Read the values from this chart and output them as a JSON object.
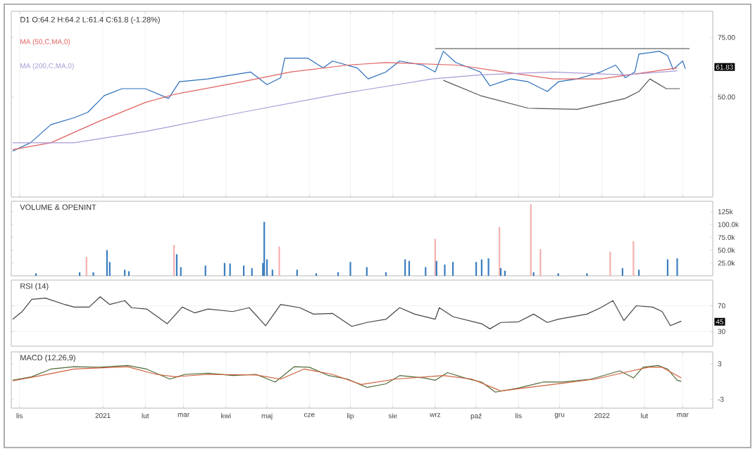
{
  "chart_data": [
    {
      "type": "line",
      "title": "D1 O:64.2 H:64.2 L:61.4 C:61.8 (-1.28%)",
      "xlim": [
        "2020-10-26",
        "2022-03-23"
      ],
      "ylim": [
        8,
        86
      ],
      "yticks": [
        {
          "value": 50,
          "label": "50.00"
        },
        {
          "value": 75,
          "label": "75.00"
        }
      ],
      "xticks": [
        {
          "value": "2020-11-01",
          "label": null
        },
        {
          "value": "2021-01-01",
          "label": null
        },
        {
          "value": "2021-02-01",
          "label": null
        },
        {
          "value": "2021-03-01",
          "label": null
        },
        {
          "value": "2021-04-01",
          "label": null
        },
        {
          "value": "2021-05-01",
          "label": null
        },
        {
          "value": "2021-06-01",
          "label": null
        },
        {
          "value": "2021-07-01",
          "label": null
        },
        {
          "value": "2021-08-01",
          "label": null
        },
        {
          "value": "2021-09-01",
          "label": null
        },
        {
          "value": "2021-10-01",
          "label": null
        },
        {
          "value": "2021-11-01",
          "label": null
        },
        {
          "value": "2021-12-01",
          "label": null
        },
        {
          "value": "2022-01-01",
          "label": null
        },
        {
          "value": "2022-02-01",
          "label": null
        },
        {
          "value": "2022-03-01",
          "label": null
        }
      ],
      "tick_labels": "y",
      "grid": "x",
      "legend": "top left",
      "annotations": [
        "61.83"
      ],
      "series": [
        {
          "color": "#2a6ebb",
          "x": [
            "2020-10-27",
            "2020-11-09",
            "2020-11-24",
            "2020-12-11",
            "2020-12-21",
            "2021-01-02",
            "2021-01-15",
            "2021-02-01",
            "2021-02-18",
            "2021-02-26",
            "2021-03-19",
            "2021-04-06",
            "2021-04-19",
            "2021-05-01",
            "2021-05-11",
            "2021-05-14",
            "2021-05-31",
            "2021-06-11",
            "2021-06-18",
            "2021-07-06",
            "2021-07-14",
            "2021-07-27",
            "2021-08-06",
            "2021-08-23",
            "2021-09-01",
            "2021-09-07",
            "2021-09-16",
            "2021-10-04",
            "2021-10-11",
            "2021-10-26",
            "2021-11-08",
            "2021-11-22",
            "2021-11-30",
            "2021-12-14",
            "2021-12-31",
            "2022-01-11",
            "2022-01-18",
            "2022-01-25",
            "2022-01-28",
            "2022-02-12",
            "2022-02-18",
            "2022-02-22",
            "2022-03-01",
            "2022-03-03"
          ],
          "values": [
            27.3,
            30.8,
            38.4,
            41.3,
            43.6,
            50.6,
            53.5,
            53.5,
            49.4,
            56.4,
            57.6,
            59.3,
            60.5,
            55.2,
            58.1,
            66.3,
            66.3,
            62.2,
            65.1,
            62.2,
            57.6,
            60.5,
            65.1,
            63.4,
            60.5,
            69.2,
            64.5,
            60.5,
            54.7,
            57.6,
            56.4,
            52.3,
            56.4,
            57.6,
            60.5,
            63.4,
            58.1,
            60.5,
            68.0,
            69.2,
            67.4,
            61.6,
            65.1,
            61.8
          ]
        },
        {
          "name": "MA (50,C,MA,0)",
          "color": "#e06060",
          "x": [
            "2020-10-27",
            "2020-11-24",
            "2020-12-28",
            "2021-02-01",
            "2021-02-23",
            "2021-04-13",
            "2021-05-18",
            "2021-06-29",
            "2021-07-27",
            "2021-09-17",
            "2021-10-22",
            "2021-11-26",
            "2021-12-31",
            "2022-02-04",
            "2022-02-25"
          ],
          "values": [
            27.9,
            30.8,
            39.5,
            47.7,
            51.2,
            56.4,
            60.5,
            63.4,
            64.5,
            63.4,
            60.5,
            57.6,
            57.6,
            60.5,
            62.2
          ]
        },
        {
          "name": "MA (200,C,MA,0)",
          "color": "#a99bd6",
          "x": [
            "2020-10-27",
            "2020-12-11",
            "2021-02-01",
            "2021-04-13",
            "2021-06-22",
            "2021-08-30",
            "2021-10-04",
            "2021-11-26",
            "2022-01-18",
            "2022-02-25"
          ],
          "values": [
            30.8,
            30.8,
            35.5,
            43.6,
            51.2,
            57.6,
            59.3,
            60.5,
            59.3,
            61.0
          ]
        },
        {
          "color": "#555555",
          "x": [
            "2021-09-07",
            "2021-10-04",
            "2021-11-08",
            "2021-12-14",
            "2022-01-18",
            "2022-01-28",
            "2022-02-05",
            "2022-02-17",
            "2022-02-27"
          ],
          "values": [
            57.0,
            50.6,
            45.3,
            44.8,
            49.4,
            52.3,
            57.6,
            53.5,
            53.5
          ]
        },
        {
          "color": "#666666",
          "x": [
            "2021-09-01",
            "2022-03-06"
          ],
          "values": [
            70.3,
            70.3
          ]
        }
      ]
    },
    {
      "type": "bar",
      "title": "VOLUME & OPENINT",
      "xlim": [
        "2020-10-26",
        "2022-03-23"
      ],
      "ylim": [
        0,
        145000
      ],
      "yticks": [
        {
          "value": 25000,
          "label": "25.0k"
        },
        {
          "value": 50000,
          "label": "50.0k"
        },
        {
          "value": 75000,
          "label": "75.0k"
        },
        {
          "value": 100000,
          "label": "100.0k"
        },
        {
          "value": 125000,
          "label": "125k"
        }
      ],
      "tick_labels": "y",
      "grid": false,
      "series": [
        {
          "x": [
            "2020-11-13",
            "2020-12-15",
            "2020-12-20",
            "2020-12-25",
            "2021-01-04",
            "2021-01-06",
            "2021-01-17",
            "2021-01-20",
            "2021-02-22",
            "2021-02-24",
            "2021-02-27",
            "2021-03-17",
            "2021-03-31",
            "2021-04-04",
            "2021-04-14",
            "2021-04-20",
            "2021-04-28",
            "2021-04-29",
            "2021-05-01",
            "2021-05-05",
            "2021-05-10",
            "2021-05-23",
            "2021-06-06",
            "2021-06-22",
            "2021-07-01",
            "2021-07-13",
            "2021-07-27",
            "2021-08-10",
            "2021-08-13",
            "2021-08-25",
            "2021-09-01",
            "2021-09-02",
            "2021-09-08",
            "2021-09-14",
            "2021-10-01",
            "2021-10-05",
            "2021-10-10",
            "2021-10-18",
            "2021-10-19",
            "2021-10-22",
            "2021-11-10",
            "2021-11-12",
            "2021-11-17",
            "2021-11-30",
            "2021-12-21",
            "2022-01-07",
            "2022-01-16",
            "2022-01-24",
            "2022-01-28",
            "2022-02-18",
            "2022-02-25"
          ],
          "values": [
            5000,
            7000,
            37000,
            7000,
            50000,
            27000,
            12000,
            9000,
            60000,
            42000,
            17000,
            20000,
            25000,
            24000,
            20000,
            15000,
            25000,
            105000,
            32000,
            12000,
            57000,
            12000,
            5000,
            7000,
            27000,
            17000,
            7000,
            32000,
            29000,
            17000,
            72000,
            29000,
            22000,
            27000,
            27000,
            32000,
            34000,
            95000,
            15000,
            10000,
            139000,
            7000,
            52000,
            5000,
            5000,
            47000,
            15000,
            67000,
            12000,
            32000,
            34000
          ],
          "colors": [
            "#3a7dc0",
            "#3a7dc0",
            "#f4b0b0",
            "#3a7dc0",
            "#3a7dc0",
            "#3a7dc0",
            "#3a7dc0",
            "#3a7dc0",
            "#f4b0b0",
            "#3a7dc0",
            "#3a7dc0",
            "#3a7dc0",
            "#3a7dc0",
            "#3a7dc0",
            "#3a7dc0",
            "#3a7dc0",
            "#3a7dc0",
            "#3a7dc0",
            "#3a7dc0",
            "#3a7dc0",
            "#f4b0b0",
            "#3a7dc0",
            "#3a7dc0",
            "#3a7dc0",
            "#3a7dc0",
            "#3a7dc0",
            "#3a7dc0",
            "#3a7dc0",
            "#3a7dc0",
            "#3a7dc0",
            "#f4b0b0",
            "#3a7dc0",
            "#3a7dc0",
            "#3a7dc0",
            "#3a7dc0",
            "#3a7dc0",
            "#3a7dc0",
            "#f4b0b0",
            "#3a7dc0",
            "#3a7dc0",
            "#f4b0b0",
            "#3a7dc0",
            "#f4b0b0",
            "#3a7dc0",
            "#3a7dc0",
            "#f4b0b0",
            "#3a7dc0",
            "#f4b0b0",
            "#3a7dc0",
            "#3a7dc0",
            "#3a7dc0"
          ]
        }
      ]
    },
    {
      "type": "line",
      "title": "RSI (14)",
      "xlim": [
        "2020-10-26",
        "2022-03-23"
      ],
      "ylim": [
        7,
        110
      ],
      "yticks": [
        30,
        70
      ],
      "tick_labels": "y",
      "grid": "y",
      "annotations": [
        "45"
      ],
      "series": [
        {
          "color": "#444444",
          "x": [
            "2020-10-27",
            "2020-11-03",
            "2020-11-10",
            "2020-11-20",
            "2020-12-04",
            "2020-12-11",
            "2020-12-22",
            "2020-12-30",
            "2021-01-06",
            "2021-01-17",
            "2021-01-22",
            "2021-02-02",
            "2021-02-17",
            "2021-02-28",
            "2021-03-09",
            "2021-03-19",
            "2021-04-06",
            "2021-04-18",
            "2021-04-30",
            "2021-05-11",
            "2021-05-25",
            "2021-06-04",
            "2021-06-18",
            "2021-07-02",
            "2021-07-13",
            "2021-07-27",
            "2021-08-06",
            "2021-08-17",
            "2021-09-01",
            "2021-09-04",
            "2021-09-14",
            "2021-10-05",
            "2021-10-11",
            "2021-10-19",
            "2021-11-01",
            "2021-11-12",
            "2021-11-22",
            "2021-11-30",
            "2021-12-21",
            "2021-12-31",
            "2022-01-09",
            "2022-01-17",
            "2022-01-26",
            "2022-02-07",
            "2022-02-14",
            "2022-02-20",
            "2022-02-28"
          ],
          "values": [
            49,
            61,
            80,
            82,
            72,
            68,
            68,
            84,
            72,
            78,
            67,
            65,
            42,
            68,
            59,
            65,
            61,
            67,
            39,
            72,
            67,
            57,
            58,
            38,
            44,
            49,
            67,
            57,
            49,
            67,
            53,
            42,
            34,
            44,
            45,
            57,
            44,
            49,
            57,
            67,
            78,
            47,
            70,
            68,
            61,
            39,
            46
          ]
        }
      ]
    },
    {
      "type": "line",
      "title": "MACD (12,26,9)",
      "xlim": [
        "2020-10-26",
        "2022-03-23"
      ],
      "ylim": [
        -4.5,
        5
      ],
      "yticks": [
        -3,
        3
      ],
      "xticks": [
        {
          "value": "2020-11-01",
          "label": "lis"
        },
        {
          "value": "2021-01-01",
          "label": "2021"
        },
        {
          "value": "2021-02-01",
          "label": "lut"
        },
        {
          "value": "2021-03-01",
          "label": "mar"
        },
        {
          "value": "2021-04-01",
          "label": "kwi"
        },
        {
          "value": "2021-05-01",
          "label": "maj"
        },
        {
          "value": "2021-06-01",
          "label": "cze"
        },
        {
          "value": "2021-07-01",
          "label": "lip"
        },
        {
          "value": "2021-08-01",
          "label": "sie"
        },
        {
          "value": "2021-09-01",
          "label": "wrz"
        },
        {
          "value": "2021-10-01",
          "label": "paź"
        },
        {
          "value": "2021-11-01",
          "label": "lis"
        },
        {
          "value": "2021-12-01",
          "label": "gru"
        },
        {
          "value": "2022-01-01",
          "label": "2022"
        },
        {
          "value": "2022-02-01",
          "label": "lut"
        },
        {
          "value": "2022-03-01",
          "label": "mar"
        }
      ],
      "grid": "x",
      "series": [
        {
          "color": "#4f6b3a",
          "x": [
            "2020-10-27",
            "2020-11-10",
            "2020-11-24",
            "2020-12-11",
            "2020-12-29",
            "2021-01-19",
            "2021-02-02",
            "2021-02-19",
            "2021-03-02",
            "2021-03-19",
            "2021-04-06",
            "2021-04-23",
            "2021-05-07",
            "2021-05-21",
            "2021-06-01",
            "2021-06-15",
            "2021-06-29",
            "2021-07-13",
            "2021-07-27",
            "2021-08-06",
            "2021-08-24",
            "2021-09-01",
            "2021-09-10",
            "2021-09-24",
            "2021-10-05",
            "2021-10-15",
            "2021-11-01",
            "2021-11-19",
            "2021-12-03",
            "2021-12-24",
            "2022-01-14",
            "2022-01-24",
            "2022-01-31",
            "2022-02-11",
            "2022-02-18",
            "2022-02-25",
            "2022-02-28"
          ],
          "values": [
            0.2,
            0.8,
            2.1,
            2.5,
            2.4,
            2.7,
            2.1,
            0.4,
            1.2,
            1.4,
            1.0,
            1.2,
            -0.1,
            2.5,
            2.4,
            1.0,
            0.4,
            -1.0,
            -0.4,
            1.0,
            0.6,
            0.2,
            1.5,
            0.5,
            -0.1,
            -1.8,
            -1.1,
            -0.1,
            -0.1,
            0.4,
            1.8,
            0.6,
            2.4,
            2.7,
            2.1,
            0.2,
            0.0
          ]
        },
        {
          "color": "#d0603a",
          "x": [
            "2020-10-27",
            "2020-11-17",
            "2020-12-11",
            "2021-01-19",
            "2021-02-09",
            "2021-02-23",
            "2021-03-19",
            "2021-04-23",
            "2021-05-11",
            "2021-05-28",
            "2021-06-18",
            "2021-07-09",
            "2021-08-03",
            "2021-09-07",
            "2021-09-28",
            "2021-10-19",
            "2021-11-08",
            "2021-12-03",
            "2021-12-27",
            "2022-01-17",
            "2022-02-04",
            "2022-02-14",
            "2022-02-28"
          ],
          "values": [
            0.1,
            1.0,
            2.1,
            2.5,
            1.2,
            0.8,
            1.2,
            1.1,
            0.4,
            2.1,
            1.2,
            -0.5,
            0.4,
            1.0,
            0.4,
            -1.6,
            -1.0,
            -0.3,
            0.4,
            1.5,
            2.4,
            2.4,
            0.6
          ]
        }
      ]
    }
  ]
}
